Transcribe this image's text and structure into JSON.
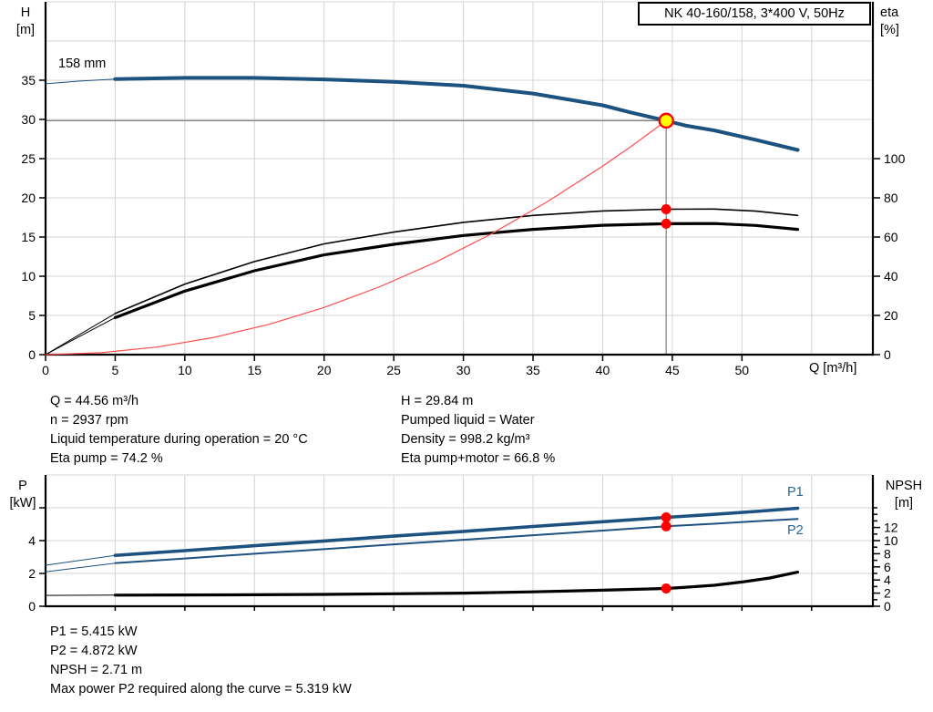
{
  "header": {
    "title": "NK 40-160/158, 3*400 V, 50Hz"
  },
  "axis_titles": {
    "top_left": [
      "H",
      "[m]"
    ],
    "top_right": [
      "eta",
      "[%]"
    ],
    "top_x": "Q [m³/h]",
    "bottom_left": [
      "P",
      "[kW]"
    ],
    "bottom_right": [
      "NPSH",
      "[m]"
    ]
  },
  "impeller_label": "158 mm",
  "duty_info": {
    "left": [
      "Q = 44.56 m³/h",
      "n = 2937 rpm",
      "Liquid temperature during operation = 20 °C",
      "Eta pump = 74.2 %"
    ],
    "right": [
      "H = 29.84 m",
      "Pumped liquid = Water",
      "Density = 998.2 kg/m³",
      "Eta pump+motor = 66.8 %"
    ]
  },
  "power_info": [
    "P1 = 5.415 kW",
    "P2 = 4.872 kW",
    "NPSH = 2.71 m",
    "Max power P2 required along the curve = 5.319 kW"
  ],
  "curve_labels": {
    "p1": "P1",
    "p2": "P2"
  },
  "colors": {
    "curve_blue": "#1d5280",
    "curve_black": "#000000",
    "system_red": "#ff4d4d",
    "marker_red": "#ff0000",
    "duty_yellow": "#ffff00",
    "grid": "#d6d6d6",
    "crosshair": "#7f7f7f",
    "label_blue": "#2a6496"
  },
  "chart_data": [
    {
      "type": "line",
      "title": "QH and efficiency curves",
      "xlabel": "Q [m³/h]",
      "ylabel_left": "H [m]",
      "ylabel_right": "eta [%]",
      "xlim": [
        0,
        59.4
      ],
      "ylim_left": [
        0,
        45
      ],
      "ylim_right": [
        0,
        180
      ],
      "grid": true,
      "legend_position": "none",
      "x_ticks": [
        0,
        5,
        10,
        15,
        20,
        25,
        30,
        35,
        40,
        45,
        50
      ],
      "grid_x": [
        5,
        10,
        15,
        20,
        25,
        30,
        35,
        40,
        45,
        50,
        55
      ],
      "left_ticks": [
        0,
        5,
        10,
        15,
        20,
        25,
        30,
        35
      ],
      "grid_left": [
        5,
        10,
        15,
        20,
        25,
        30,
        35,
        40,
        45
      ],
      "right_ticks": [
        0,
        20,
        40,
        60,
        80,
        100
      ],
      "series": [
        {
          "name": "head-158mm",
          "axis": "left",
          "color_key": "curve_blue",
          "width": 4,
          "thin_until": 5,
          "points": [
            [
              0,
              34.55
            ],
            [
              2.5,
              34.9
            ],
            [
              5,
              35.15
            ],
            [
              10,
              35.3
            ],
            [
              15,
              35.3
            ],
            [
              20,
              35.1
            ],
            [
              25,
              34.8
            ],
            [
              30,
              34.3
            ],
            [
              35,
              33.3
            ],
            [
              40,
              31.8
            ],
            [
              42,
              30.9
            ],
            [
              44.56,
              29.84
            ],
            [
              46,
              29.2
            ],
            [
              48,
              28.6
            ],
            [
              51,
              27.4
            ],
            [
              54,
              26.1
            ]
          ]
        },
        {
          "name": "eta-pump",
          "axis": "right",
          "color_key": "curve_black",
          "width": 1.6,
          "thin_until": 5,
          "points": [
            [
              0,
              0
            ],
            [
              2.5,
              10.5
            ],
            [
              5,
              21
            ],
            [
              10,
              36
            ],
            [
              15,
              47.5
            ],
            [
              20,
              56.5
            ],
            [
              25,
              62.5
            ],
            [
              30,
              67.5
            ],
            [
              35,
              71
            ],
            [
              40,
              73.3
            ],
            [
              44.56,
              74.2
            ],
            [
              48,
              74.3
            ],
            [
              51,
              73.2
            ],
            [
              54,
              71
            ]
          ]
        },
        {
          "name": "eta-pump-motor",
          "axis": "right",
          "color_key": "curve_black",
          "width": 3.2,
          "thin_until": 5,
          "points": [
            [
              0,
              0
            ],
            [
              2.5,
              9.5
            ],
            [
              5,
              18.9
            ],
            [
              10,
              32.4
            ],
            [
              15,
              42.8
            ],
            [
              20,
              50.9
            ],
            [
              25,
              56.3
            ],
            [
              30,
              60.8
            ],
            [
              35,
              63.9
            ],
            [
              40,
              66
            ],
            [
              44.56,
              66.8
            ],
            [
              48,
              66.9
            ],
            [
              51,
              65.9
            ],
            [
              54,
              63.9
            ]
          ]
        },
        {
          "name": "system-curve",
          "axis": "left",
          "color_key": "system_red",
          "width": 1.2,
          "points": [
            [
              0,
              0
            ],
            [
              4,
              0.24
            ],
            [
              8,
              0.96
            ],
            [
              12,
              2.16
            ],
            [
              16,
              3.85
            ],
            [
              20,
              6.01
            ],
            [
              24,
              8.66
            ],
            [
              28,
              11.78
            ],
            [
              32,
              15.39
            ],
            [
              36,
              19.48
            ],
            [
              40,
              24.04
            ],
            [
              42,
              26.5
            ],
            [
              44.56,
              29.84
            ]
          ]
        }
      ],
      "crosshair": {
        "q": 44.56,
        "h": 29.84
      },
      "markers": [
        {
          "axis": "left",
          "x": 44.56,
          "y": 29.84,
          "r": 7.5,
          "fill_key": "duty_yellow",
          "stroke_key": "marker_red",
          "sw": 2.4,
          "name": "duty-point-marker"
        },
        {
          "axis": "right",
          "x": 44.56,
          "y": 74.2,
          "r": 5.5,
          "fill_key": "marker_red",
          "name": "eta-pump-point-marker"
        },
        {
          "axis": "right",
          "x": 44.56,
          "y": 66.8,
          "r": 5.5,
          "fill_key": "marker_red",
          "name": "eta-pump-motor-point-marker"
        }
      ]
    },
    {
      "type": "line",
      "title": "Power and NPSH curves",
      "xlabel": "",
      "ylabel_left": "P [kW]",
      "ylabel_right": "NPSH [m]",
      "xlim": [
        0,
        59.4
      ],
      "ylim_left": [
        0,
        8
      ],
      "ylim_right": [
        0,
        20
      ],
      "grid": true,
      "legend_position": "none",
      "x_ticks": [],
      "x_minor": [
        5,
        10,
        15,
        20,
        25,
        30,
        35,
        40,
        45,
        50,
        55
      ],
      "grid_x": [
        5,
        10,
        15,
        20,
        25,
        30,
        35,
        40,
        45,
        50,
        55
      ],
      "left_ticks": [
        0,
        2,
        4
      ],
      "left_minor": [
        6
      ],
      "grid_left": [
        2,
        4,
        6,
        8
      ],
      "right_ticks": [
        0,
        2,
        4,
        6,
        8,
        10,
        12
      ],
      "right_minor": [
        1,
        3,
        5,
        7,
        9,
        11,
        13,
        14,
        15
      ],
      "series": [
        {
          "name": "p1",
          "axis": "left",
          "color_key": "curve_blue",
          "width": 3.6,
          "thin_until": 5,
          "points": [
            [
              0,
              2.5
            ],
            [
              5,
              3.1
            ],
            [
              10,
              3.39
            ],
            [
              15,
              3.69
            ],
            [
              20,
              3.98
            ],
            [
              25,
              4.27
            ],
            [
              30,
              4.56
            ],
            [
              35,
              4.86
            ],
            [
              40,
              5.15
            ],
            [
              44.56,
              5.415
            ],
            [
              48,
              5.6
            ],
            [
              51,
              5.78
            ],
            [
              54,
              5.97
            ]
          ]
        },
        {
          "name": "p2",
          "axis": "left",
          "color_key": "curve_blue",
          "width": 2,
          "thin_until": 5,
          "points": [
            [
              0,
              2.1
            ],
            [
              5,
              2.63
            ],
            [
              10,
              2.91
            ],
            [
              15,
              3.2
            ],
            [
              20,
              3.48
            ],
            [
              25,
              3.77
            ],
            [
              30,
              4.05
            ],
            [
              35,
              4.33
            ],
            [
              40,
              4.61
            ],
            [
              44.56,
              4.872
            ],
            [
              48,
              5.03
            ],
            [
              51,
              5.18
            ],
            [
              54,
              5.319
            ]
          ]
        },
        {
          "name": "npsh",
          "axis": "right",
          "color_key": "curve_black",
          "width": 3.2,
          "thin_until": 5,
          "points": [
            [
              0,
              1.65
            ],
            [
              5,
              1.7
            ],
            [
              10,
              1.72
            ],
            [
              15,
              1.75
            ],
            [
              20,
              1.8
            ],
            [
              25,
              1.9
            ],
            [
              30,
              2.0
            ],
            [
              35,
              2.2
            ],
            [
              40,
              2.45
            ],
            [
              44.56,
              2.71
            ],
            [
              46,
              2.9
            ],
            [
              48,
              3.2
            ],
            [
              50,
              3.7
            ],
            [
              52,
              4.3
            ],
            [
              54,
              5.2
            ]
          ]
        }
      ],
      "markers": [
        {
          "axis": "left",
          "x": 44.56,
          "y": 5.415,
          "r": 5.5,
          "fill_key": "marker_red",
          "name": "p1-point-marker"
        },
        {
          "axis": "left",
          "x": 44.56,
          "y": 4.872,
          "r": 5.5,
          "fill_key": "marker_red",
          "name": "p2-point-marker"
        },
        {
          "axis": "right",
          "x": 44.56,
          "y": 2.71,
          "r": 5.5,
          "fill_key": "marker_red",
          "name": "npsh-point-marker"
        }
      ]
    }
  ]
}
